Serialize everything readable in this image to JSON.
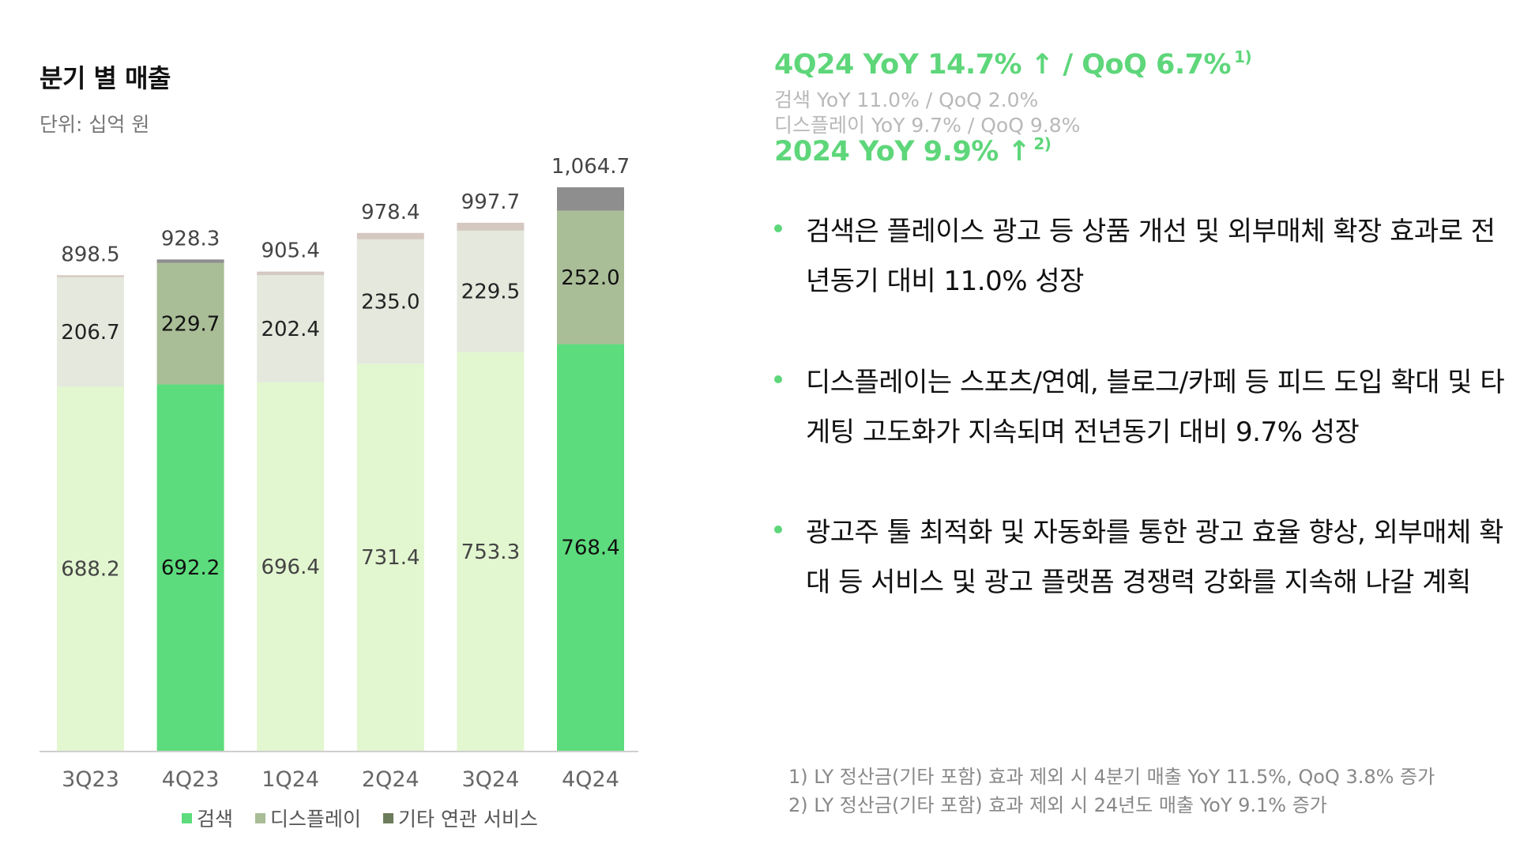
{
  "header": {
    "title": "분기 별 매출",
    "unit": "단위: 십억 원"
  },
  "chart_data": {
    "type": "bar",
    "stacked": true,
    "categories": [
      "3Q23",
      "4Q23",
      "1Q24",
      "2Q24",
      "3Q24",
      "4Q24"
    ],
    "series": [
      {
        "name": "검색",
        "values": [
          688.2,
          692.2,
          696.4,
          731.4,
          753.3,
          768.4
        ]
      },
      {
        "name": "디스플레이",
        "values": [
          206.7,
          229.7,
          202.4,
          235.0,
          229.5,
          252.0
        ]
      },
      {
        "name": "기타 연관 서비스",
        "values": [
          3.6,
          6.4,
          6.6,
          12.0,
          14.9,
          44.3
        ]
      }
    ],
    "totals": [
      898.5,
      928.3,
      905.4,
      978.4,
      997.7,
      1064.7
    ],
    "total_labels": [
      "898.5",
      "928.3",
      "905.4",
      "978.4",
      "997.7",
      "1,064.7"
    ],
    "value_labels": {
      "search": [
        "688.2",
        "692.2",
        "696.4",
        "731.4",
        "753.3",
        "768.4"
      ],
      "display": [
        "206.7",
        "229.7",
        "202.4",
        "235.0",
        "229.5",
        "252.0"
      ]
    },
    "highlighted_categories": [
      "4Q23",
      "4Q24"
    ],
    "ylim": [
      0,
      1064.7
    ],
    "legend_position": "bottom",
    "grid": false,
    "colors": {
      "search_highlight": "#5ddc7d",
      "search": "#e2f6d0",
      "display_highlight": "#a9bd97",
      "display": "#e4e8dd",
      "other_highlight": "#8e8e8e",
      "other": "#d5c8c0",
      "legend_search": "#5ddc7d",
      "legend_display": "#a9bd97",
      "legend_other": "#6b7d5a"
    }
  },
  "legend": [
    {
      "label": "검색"
    },
    {
      "label": "디스플레이"
    },
    {
      "label": "기타 연관 서비스"
    }
  ],
  "highlights": {
    "main": "4Q24 YoY 14.7% ↑ / QoQ 6.7%",
    "main_note": "1)",
    "search": "검색 YoY 11.0% / QoQ 2.0%",
    "display": "디스플레이 YoY 9.7% / QoQ 9.8%",
    "year": "2024 YoY 9.9% ↑",
    "year_note": "2)"
  },
  "bullets": [
    {
      "text": "검색은 플레이스 광고 등 상품 개선 및 외부매체 확장 효과로 전년동기 대비 11.0% 성장"
    },
    {
      "text": "디스플레이는 스포츠/연예, 블로그/카페 등 피드 도입 확대 및 타게팅 고도화가 지속되며 전년동기 대비 9.7% 성장"
    },
    {
      "text": "광고주 툴 최적화 및 자동화를 통한 광고 효율 향상, 외부매체 확대 등 서비스 및 광고 플랫폼 경쟁력 강화를 지속해 나갈 계획"
    }
  ],
  "footnotes": [
    "1) LY 정산금(기타 포함) 효과 제외 시 4분기 매출 YoY 11.5%, QoQ 3.8% 증가",
    "2) LY 정산금(기타 포함) 효과 제외 시 24년도 매출 YoY 9.1% 증가"
  ]
}
